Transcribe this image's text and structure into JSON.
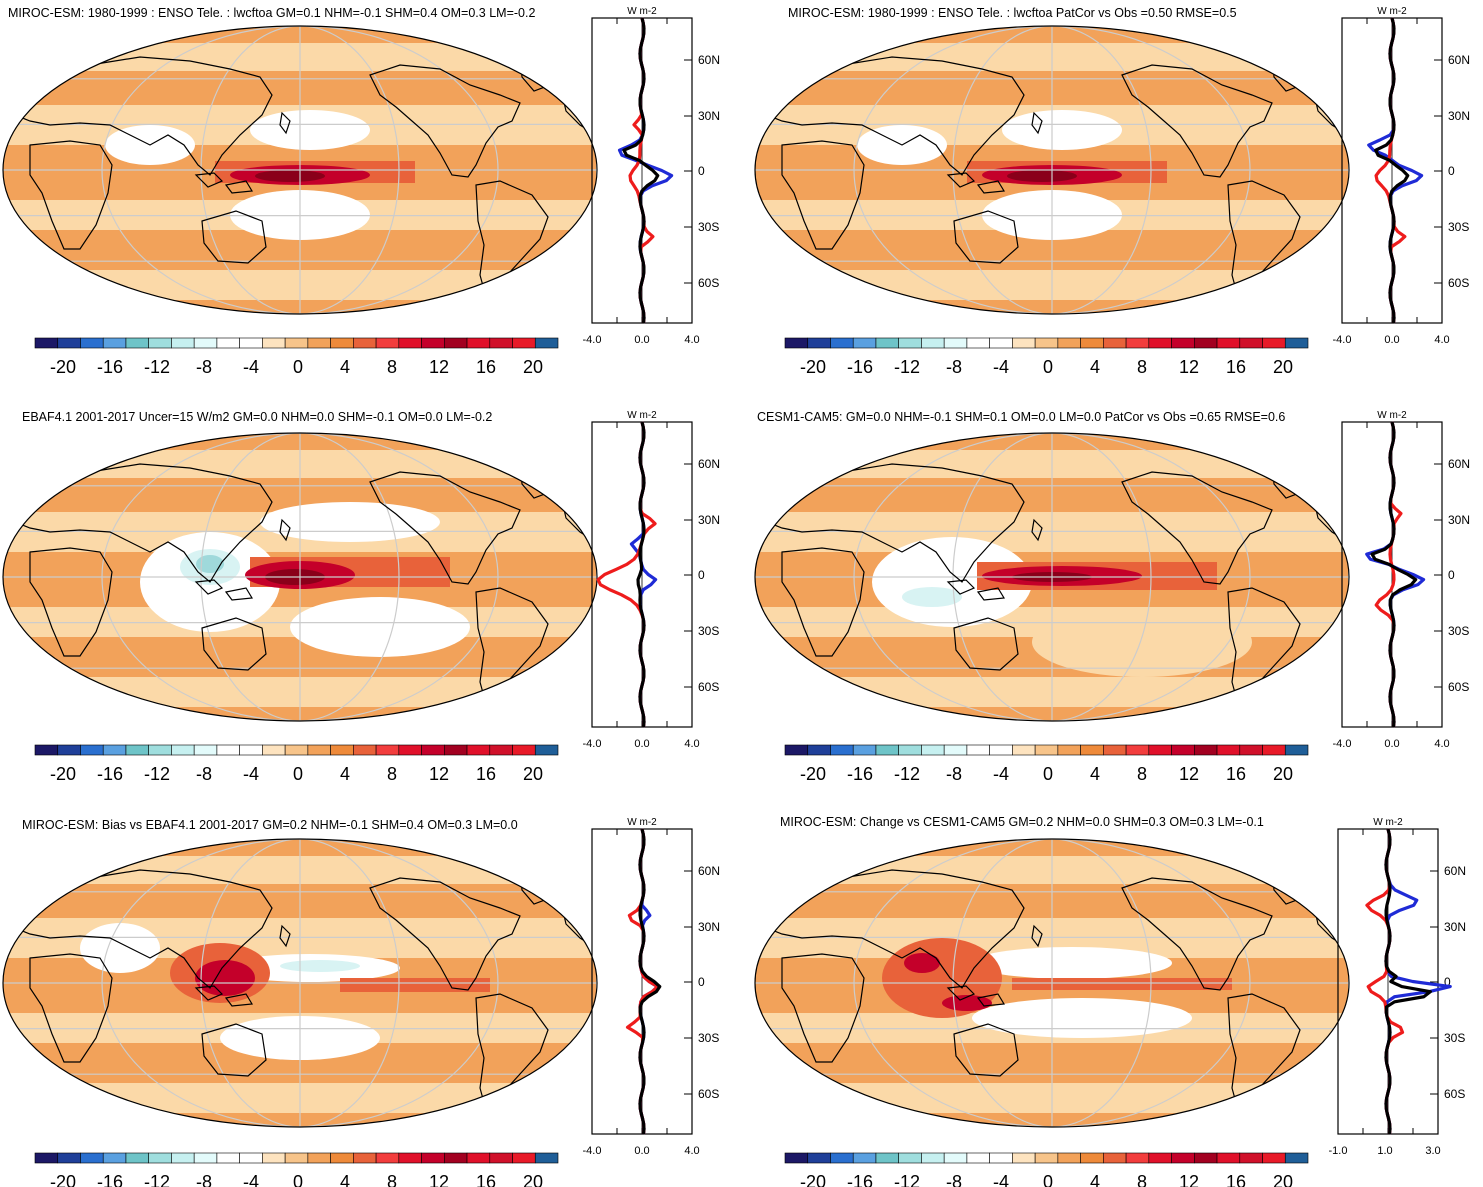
{
  "colors": {
    "ocean_neutral": "#ffffff",
    "weak_pos": "#fbd9a8",
    "mid_pos": "#f2a25a",
    "strong_pos": "#e8623a",
    "very_strong": "#c4002a",
    "extreme": "#8a001a",
    "neg1": "#d8f3f3",
    "neg2": "#9fd9db",
    "grid": "#cccccc",
    "coast": "#000000",
    "line_blue": "#1f2bd6",
    "line_red": "#ee1c1c",
    "line_black": "#000000"
  },
  "colorbar": {
    "labels": [
      "-20",
      "-16",
      "-12",
      "-8",
      "-4",
      "0",
      "4",
      "8",
      "12",
      "16",
      "20"
    ],
    "swatches": [
      "#1c1866",
      "#1f3f99",
      "#2a6fcf",
      "#5aa0e0",
      "#6ec4c8",
      "#9fdede",
      "#c6f0f0",
      "#e3fbfb",
      "#ffffff",
      "#ffffff",
      "#fde3bf",
      "#f7c48a",
      "#f2a25a",
      "#ee8a3a",
      "#e8623a",
      "#f23d3d",
      "#e0102a",
      "#c4002a",
      "#a20020",
      "#e0102a",
      "#d0102a",
      "#e81a28",
      "#1f5e98"
    ]
  },
  "profile": {
    "units": "W m-2",
    "lat_labels": [
      "60N",
      "30N",
      "0",
      "30S",
      "60S"
    ],
    "x_labels_default": [
      "-4.0",
      "0.0",
      "4.0"
    ],
    "x_labels_change": [
      "-1.0",
      "1.0",
      "3.0"
    ]
  },
  "panels": [
    {
      "id": "p1",
      "title": "MIROC-ESM: 1980-1999 : ENSO Tele. : lwcftoa GM=0.1 NHM=-0.1 SHM=0.4 OM=0.3 LM=-0.2"
    },
    {
      "id": "p2",
      "title": "MIROC-ESM: 1980-1999 : ENSO Tele. : lwcftoa PatCor vs Obs =0.50 RMSE=0.5"
    },
    {
      "id": "p3",
      "title": "EBAF4.1 2001-2017 Uncer=15 W/m2 GM=0.0 NHM=0.0 SHM=-0.1 OM=0.0 LM=-0.2"
    },
    {
      "id": "p4",
      "title": "CESM1-CAM5: GM=0.0 NHM=-0.1 SHM=0.1 OM=0.0 LM=0.0 PatCor vs Obs =0.65 RMSE=0.6"
    },
    {
      "id": "p5",
      "title": "MIROC-ESM: Bias vs EBAF4.1 2001-2017 GM=0.2 NHM=-0.1 SHM=0.4 OM=0.3 LM=0.0"
    },
    {
      "id": "p6",
      "title": "MIROC-ESM: Change vs CESM1-CAM5 GM=0.2 NHM=0.0 SHM=0.3 OM=0.3 LM=-0.1"
    }
  ]
}
